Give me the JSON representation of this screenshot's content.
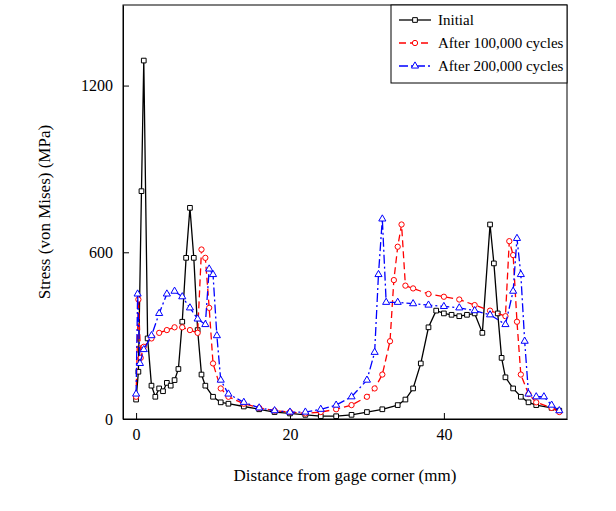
{
  "chart_data": {
    "type": "line",
    "x_label": "Distance from gage corner (mm)",
    "y_label": "Stress (von Mises) (MPa)",
    "xlim": [
      -1.7,
      56
    ],
    "ylim": [
      0,
      1490
    ],
    "xticks": [
      0,
      20,
      40
    ],
    "yticks": [
      0,
      600,
      1200
    ],
    "legend": "top-right",
    "grid": false,
    "series": [
      {
        "name": "Initial",
        "color": "#000000",
        "marker": "square",
        "line_style": "solid",
        "x": [
          0,
          0.3,
          0.7,
          1.0,
          1.5,
          2,
          2.5,
          3,
          3.5,
          4,
          4.5,
          5,
          5.5,
          6,
          6.5,
          7,
          7.5,
          8,
          8.5,
          9,
          10,
          11,
          12,
          14,
          16,
          18,
          20,
          22,
          24,
          26,
          28,
          30,
          32,
          34,
          35,
          36,
          37,
          38,
          39,
          40,
          41,
          42,
          43,
          44,
          45,
          46,
          46.5,
          47,
          47.5,
          48,
          49,
          50,
          51,
          52,
          54,
          55
        ],
        "values": [
          70,
          170,
          820,
          1290,
          290,
          120,
          80,
          110,
          100,
          130,
          120,
          140,
          180,
          350,
          580,
          760,
          580,
          320,
          160,
          120,
          80,
          60,
          55,
          45,
          35,
          25,
          20,
          15,
          10,
          10,
          15,
          25,
          35,
          50,
          70,
          110,
          200,
          330,
          390,
          380,
          375,
          370,
          375,
          380,
          310,
          700,
          560,
          380,
          220,
          150,
          110,
          80,
          60,
          50,
          40,
          30
        ]
      },
      {
        "name": "After 100,000 cycles",
        "color": "#ff0000",
        "marker": "circle",
        "line_style": "dashed",
        "x": [
          0,
          0.3,
          0.6,
          1,
          2,
          3,
          4,
          5,
          6,
          7,
          8,
          8.5,
          9,
          9.5,
          10,
          11,
          12,
          14,
          16,
          18,
          20,
          22,
          24,
          26,
          28,
          30,
          31,
          32,
          33,
          33.5,
          34,
          34.5,
          35,
          36,
          38,
          40,
          42,
          44,
          46,
          48,
          48.5,
          49,
          49.5,
          50,
          51,
          52,
          54,
          55
        ],
        "values": [
          80,
          430,
          220,
          260,
          290,
          310,
          320,
          330,
          330,
          320,
          310,
          610,
          580,
          400,
          200,
          110,
          80,
          55,
          40,
          30,
          25,
          20,
          25,
          35,
          50,
          80,
          110,
          160,
          280,
          500,
          620,
          700,
          480,
          470,
          450,
          440,
          430,
          410,
          390,
          370,
          640,
          590,
          350,
          160,
          90,
          60,
          40,
          25
        ]
      },
      {
        "name": "After 200,000 cycles",
        "color": "#0000ff",
        "marker": "triangle",
        "line_style": "dashdot",
        "x": [
          0,
          0.2,
          0.5,
          1,
          2,
          3,
          4,
          5,
          6,
          7,
          8,
          9,
          9.5,
          10,
          10.5,
          11,
          12,
          14,
          16,
          18,
          20,
          22,
          24,
          26,
          28,
          30,
          31,
          31.5,
          32,
          32.5,
          34,
          36,
          38,
          40,
          42,
          44,
          46,
          48,
          49,
          49.5,
          50,
          50.5,
          51,
          52,
          53,
          54,
          55
        ],
        "values": [
          90,
          450,
          200,
          250,
          300,
          380,
          450,
          460,
          440,
          400,
          360,
          340,
          540,
          520,
          300,
          140,
          90,
          60,
          40,
          30,
          25,
          25,
          35,
          50,
          80,
          140,
          240,
          520,
          720,
          420,
          420,
          415,
          410,
          405,
          400,
          390,
          375,
          340,
          460,
          650,
          520,
          280,
          90,
          80,
          80,
          50,
          30
        ]
      }
    ]
  }
}
